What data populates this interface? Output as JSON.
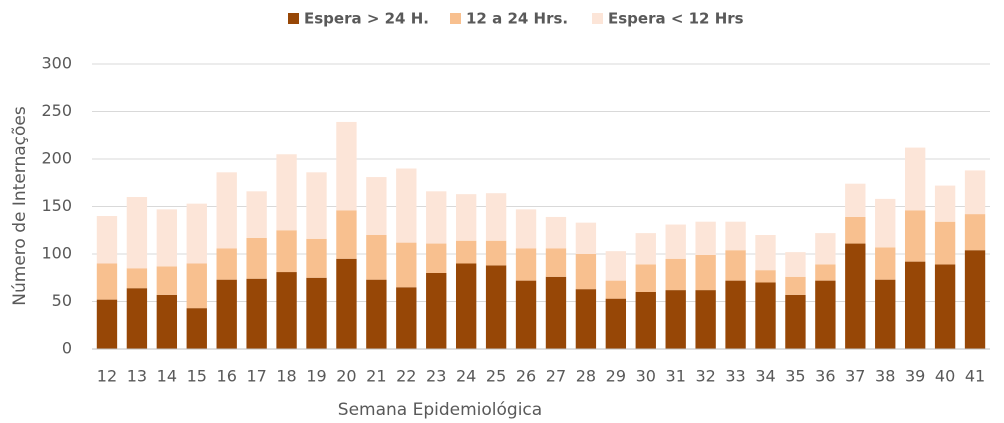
{
  "chart_data": {
    "type": "stacked_bar",
    "categories": [
      "12",
      "13",
      "14",
      "15",
      "16",
      "17",
      "18",
      "19",
      "20",
      "21",
      "22",
      "23",
      "24",
      "25",
      "26",
      "27",
      "28",
      "29",
      "30",
      "31",
      "32",
      "33",
      "34",
      "35",
      "36",
      "37",
      "38",
      "39",
      "40",
      "41"
    ],
    "series": [
      {
        "name": "Espera > 24 H.",
        "color": "#974706",
        "values": [
          52,
          64,
          57,
          43,
          73,
          74,
          81,
          75,
          95,
          73,
          65,
          80,
          90,
          88,
          72,
          76,
          63,
          53,
          60,
          62,
          62,
          72,
          70,
          57,
          72,
          111,
          73,
          92,
          89,
          104
        ]
      },
      {
        "name": "12 a 24 Hrs.",
        "color": "#f8c08f",
        "values": [
          38,
          21,
          30,
          47,
          33,
          43,
          44,
          41,
          51,
          47,
          47,
          31,
          24,
          26,
          34,
          30,
          37,
          19,
          29,
          33,
          37,
          32,
          13,
          19,
          17,
          28,
          34,
          54,
          45,
          38
        ]
      },
      {
        "name": "Espera < 12 Hrs",
        "color": "#fce5d8",
        "values": [
          50,
          75,
          60,
          63,
          80,
          49,
          80,
          70,
          93,
          61,
          78,
          55,
          49,
          50,
          41,
          33,
          33,
          31,
          33,
          36,
          35,
          30,
          37,
          26,
          33,
          35,
          51,
          66,
          38,
          46
        ]
      }
    ],
    "x_label": "Semana Epidemiológica",
    "y_label": "Número de Internações",
    "ylim": [
      0,
      300
    ],
    "yticks": [
      0,
      50,
      100,
      150,
      200,
      250,
      300
    ],
    "grid": true,
    "legend": "top"
  }
}
